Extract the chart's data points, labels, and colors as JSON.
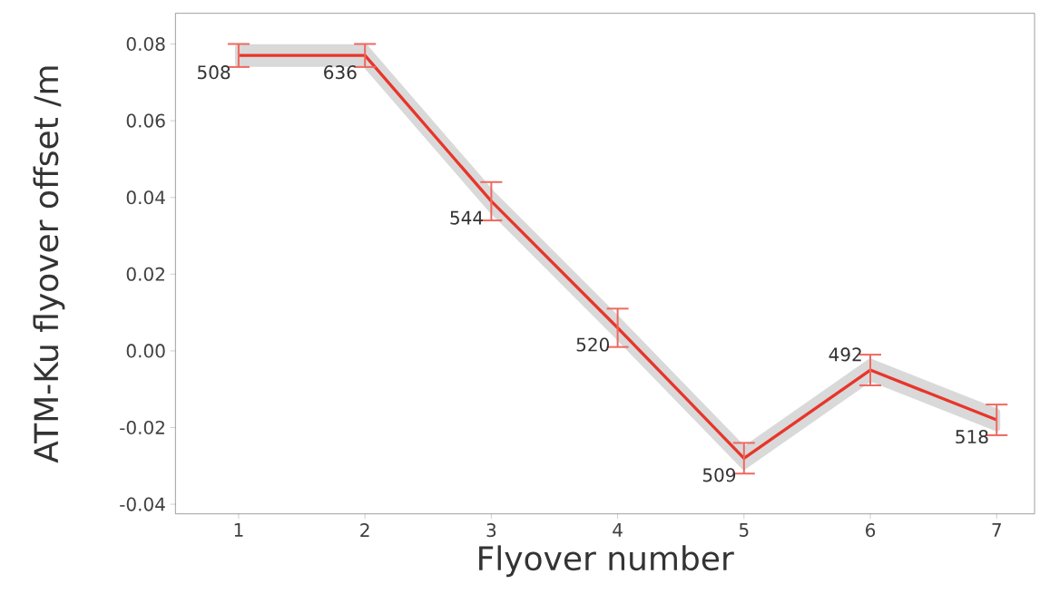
{
  "chart_data": {
    "type": "line",
    "xlabel": "Flyover number",
    "ylabel": "ATM-Ku flyover offset /m",
    "x": [
      1,
      2,
      3,
      4,
      5,
      6,
      7
    ],
    "series": [
      {
        "color": "#e8352b",
        "values": [
          0.077,
          0.077,
          0.039,
          0.006,
          -0.028,
          -0.005,
          -0.018
        ],
        "errors": [
          0.003,
          0.003,
          0.005,
          0.005,
          0.004,
          0.004,
          0.004
        ],
        "lower": [
          0.075,
          0.075,
          0.037,
          0.004,
          -0.03,
          -0.007,
          -0.02
        ],
        "upper": [
          0.079,
          0.079,
          0.041,
          0.008,
          -0.026,
          -0.003,
          -0.016
        ]
      }
    ],
    "xlim": [
      0.5,
      7.3
    ],
    "ylim": [
      -0.0425,
      0.088
    ],
    "xticks": [
      1,
      2,
      3,
      4,
      5,
      6,
      7
    ],
    "yticks": [
      {
        "value": -0.04,
        "label": "-0.04"
      },
      {
        "value": -0.02,
        "label": "-0.02"
      },
      {
        "value": 0,
        "label": "0.00"
      },
      {
        "value": 0.02,
        "label": "0.02"
      },
      {
        "value": 0.04,
        "label": "0.04"
      },
      {
        "value": 0.06,
        "label": "0.06"
      },
      {
        "value": 0.08,
        "label": "0.08"
      }
    ],
    "annotations": [
      {
        "text": "508",
        "x": 1,
        "y": 0.077
      },
      {
        "text": "636",
        "x": 2,
        "y": 0.077
      },
      {
        "text": "544",
        "x": 3,
        "y": 0.039
      },
      {
        "text": "520",
        "x": 4,
        "y": 0.006
      },
      {
        "text": "509",
        "x": 5,
        "y": -0.028
      },
      {
        "text": "492",
        "x": 6,
        "y": -0.005
      },
      {
        "text": "518",
        "x": 7,
        "y": -0.018
      }
    ],
    "grid": false,
    "line_style": "solid"
  }
}
